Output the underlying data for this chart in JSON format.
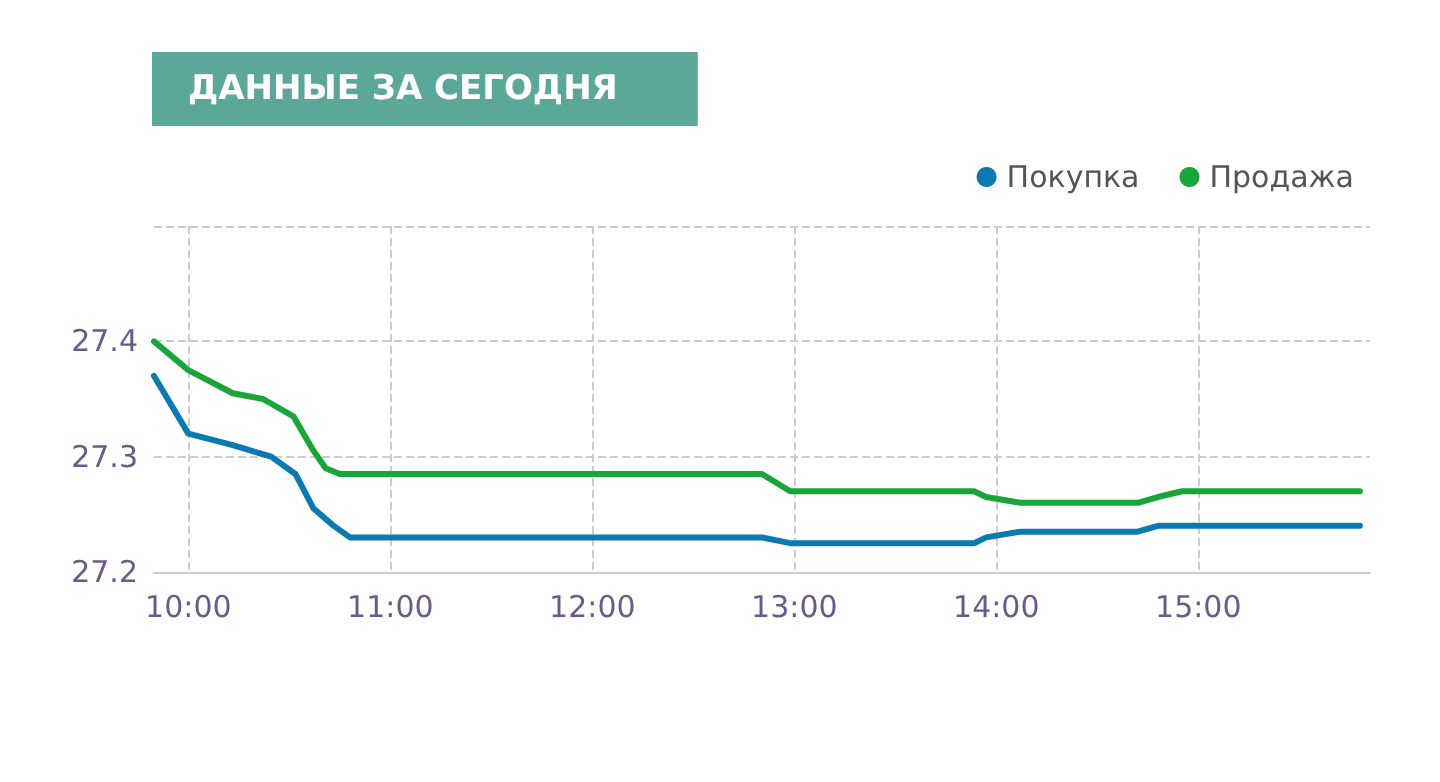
{
  "chart_data": {
    "type": "line",
    "title": "ДАННЫЕ ЗА СЕГОДНЯ",
    "xlim": [
      9.83,
      15.85
    ],
    "xticks": [
      {
        "value": 10,
        "label": "10:00"
      },
      {
        "value": 11,
        "label": "11:00"
      },
      {
        "value": 12,
        "label": "12:00"
      },
      {
        "value": 13,
        "label": "13:00"
      },
      {
        "value": 14,
        "label": "14:00"
      },
      {
        "value": 15,
        "label": "15:00"
      }
    ],
    "ylim": [
      27.2,
      27.5
    ],
    "yticks": [
      27.2,
      27.3,
      27.4,
      {
        "value": 27.5,
        "label": null
      }
    ],
    "grid": true,
    "legend": "top right",
    "marker": "none",
    "line_style": "solid",
    "series": [
      {
        "name": "Покупка",
        "color": "#0a7ab0",
        "x": [
          9.83,
          10.0,
          10.22,
          10.41,
          10.53,
          10.62,
          10.72,
          10.8,
          12.84,
          12.98,
          13.89,
          13.95,
          14.12,
          14.7,
          14.8,
          14.92,
          15.8
        ],
        "values": [
          27.37,
          27.32,
          27.31,
          27.3,
          27.285,
          27.255,
          27.24,
          27.23,
          27.23,
          27.225,
          27.225,
          27.23,
          27.235,
          27.235,
          27.24,
          27.24,
          27.24
        ]
      },
      {
        "name": "Продажа",
        "color": "#1aa53a",
        "x": [
          9.83,
          10.0,
          10.22,
          10.37,
          10.52,
          10.62,
          10.68,
          10.75,
          12.84,
          12.98,
          13.89,
          13.95,
          14.12,
          14.7,
          14.8,
          14.92,
          15.8
        ],
        "values": [
          27.4,
          27.375,
          27.355,
          27.35,
          27.335,
          27.305,
          27.29,
          27.285,
          27.285,
          27.27,
          27.27,
          27.265,
          27.26,
          27.26,
          27.265,
          27.27,
          27.27
        ]
      }
    ]
  }
}
